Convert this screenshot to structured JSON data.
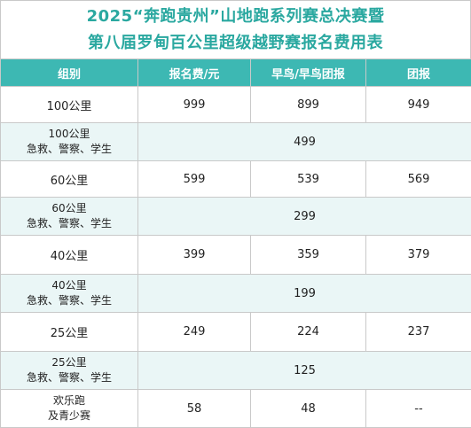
{
  "title": {
    "line1": "2025“奔跑贵州”山地跑系列赛总决赛暨",
    "line2": "第八届罗甸百公里超级越野赛报名费用表"
  },
  "headers": [
    "组别",
    "报名费/元",
    "早鸟/早鸟团报",
    "团报"
  ],
  "rows": [
    {
      "type": "main",
      "group": "100公里",
      "fee": "999",
      "early": "899",
      "team": "949"
    },
    {
      "type": "sub",
      "group_line1": "100公里",
      "group_line2": "急救、警察、学生",
      "price": "499"
    },
    {
      "type": "main",
      "group": "60公里",
      "fee": "599",
      "early": "539",
      "team": "569"
    },
    {
      "type": "sub",
      "group_line1": "60公里",
      "group_line2": "急救、警察、学生",
      "price": "299"
    },
    {
      "type": "main",
      "group": "40公里",
      "fee": "399",
      "early": "359",
      "team": "379"
    },
    {
      "type": "sub",
      "group_line1": "40公里",
      "group_line2": "急救、警察、学生",
      "price": "199"
    },
    {
      "type": "main",
      "group": "25公里",
      "fee": "249",
      "early": "224",
      "team": "237"
    },
    {
      "type": "sub",
      "group_line1": "25公里",
      "group_line2": "急救、警察、学生",
      "price": "125"
    },
    {
      "type": "last",
      "group_line1": "欢乐跑",
      "group_line2": "及青少赛",
      "fee": "58",
      "early": "48",
      "team": "--"
    }
  ]
}
